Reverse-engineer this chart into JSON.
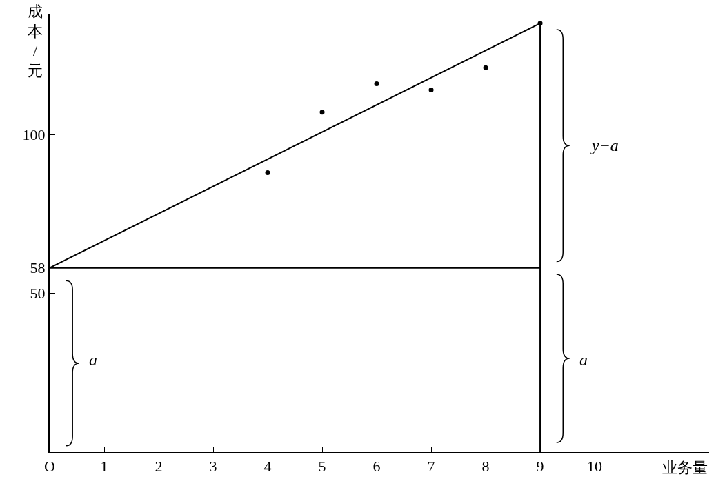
{
  "chart_data": {
    "type": "scatter",
    "xlabel": "业务量",
    "ylabel": "成本/元",
    "x": [
      4,
      5,
      6,
      7,
      8,
      9
    ],
    "series": [
      {
        "color": "#000000",
        "marker": "circle",
        "values": [
          88,
          107,
          116,
          114,
          121,
          135
        ]
      },
      {
        "type": "line",
        "color": "#000000",
        "x": [
          0,
          9
        ],
        "values": [
          58,
          135
        ]
      }
    ],
    "xlim": [
      0,
      12.1
    ],
    "ylim": [
      0,
      138
    ],
    "xticks": [
      {
        "value": 0,
        "label": "O"
      },
      1,
      2,
      3,
      4,
      5,
      6,
      7,
      8,
      9,
      10
    ],
    "yticks": [
      50,
      58,
      100
    ],
    "ref_lines": [
      {
        "axis": "x",
        "value": 9,
        "color": "#000000"
      },
      {
        "axis": "y",
        "value": 58,
        "color": "#000000"
      }
    ],
    "annotations": [
      "a",
      "y−a",
      "a"
    ],
    "grid": false
  }
}
